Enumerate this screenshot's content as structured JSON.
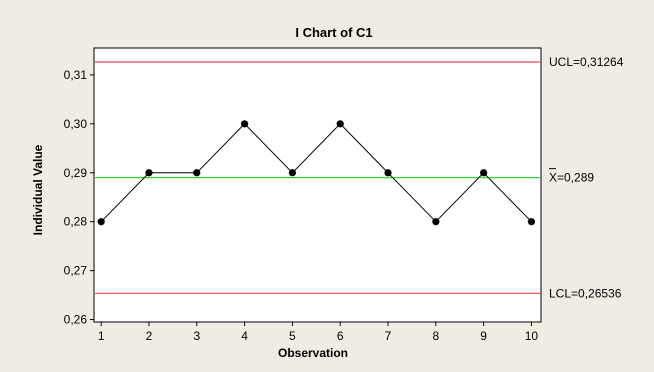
{
  "chart_data": {
    "type": "line",
    "title": "I Chart of C1",
    "xlabel": "Observation",
    "ylabel": "Individual Value",
    "x": [
      1,
      2,
      3,
      4,
      5,
      6,
      7,
      8,
      9,
      10
    ],
    "xticks": [
      "1",
      "2",
      "3",
      "4",
      "5",
      "6",
      "7",
      "8",
      "9",
      "10"
    ],
    "values": [
      0.28,
      0.29,
      0.29,
      0.3,
      0.29,
      0.3,
      0.29,
      0.28,
      0.29,
      0.28
    ],
    "yticks": [
      "0,26",
      "0,27",
      "0,28",
      "0,29",
      "0,30",
      "0,31"
    ],
    "ylim": [
      0.2595,
      0.3155
    ],
    "xlim": [
      0.85,
      10.2
    ],
    "reference_lines": [
      {
        "name": "UCL",
        "label": "UCL=0,31264",
        "value": 0.31264,
        "color": "#e8474f"
      },
      {
        "name": "Xbar",
        "label": "X=0,289",
        "value": 0.289,
        "color": "#33d633"
      },
      {
        "name": "LCL",
        "label": "LCL=0,26536",
        "value": 0.26536,
        "color": "#e8474f"
      }
    ],
    "colors": {
      "background": "#efede3",
      "plot_background": "#ffffff",
      "series": "#000000"
    },
    "grid": false,
    "legend": "none"
  }
}
